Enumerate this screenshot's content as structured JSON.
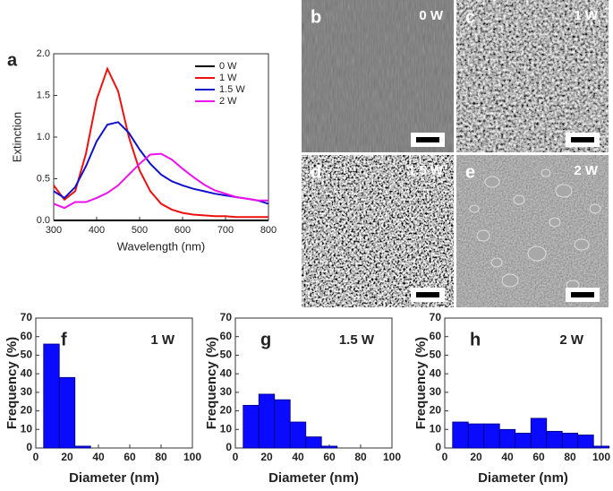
{
  "chart_data": [
    {
      "type": "line",
      "panel": "a",
      "xlabel": "Wavelength (nm)",
      "ylabel": "Extinction",
      "x": [
        300,
        325,
        350,
        375,
        400,
        425,
        450,
        475,
        500,
        525,
        550,
        575,
        600,
        625,
        650,
        675,
        700,
        725,
        750,
        775,
        800
      ],
      "series": [
        {
          "name": "0 W",
          "color": "#000000",
          "values": [
            0,
            0,
            0,
            0,
            0,
            0,
            0,
            0,
            0,
            0,
            0,
            0,
            0,
            0,
            0,
            0,
            0,
            0,
            0,
            0,
            0
          ]
        },
        {
          "name": "1 W",
          "color": "#ee1111",
          "values": [
            0.42,
            0.25,
            0.35,
            0.8,
            1.45,
            1.82,
            1.55,
            1.0,
            0.6,
            0.35,
            0.2,
            0.13,
            0.09,
            0.07,
            0.06,
            0.05,
            0.05,
            0.04,
            0.04,
            0.04,
            0.04
          ]
        },
        {
          "name": "1.5 W",
          "color": "#1111cc",
          "values": [
            0.35,
            0.27,
            0.4,
            0.65,
            0.95,
            1.15,
            1.18,
            1.05,
            0.85,
            0.68,
            0.55,
            0.47,
            0.42,
            0.38,
            0.35,
            0.32,
            0.3,
            0.28,
            0.26,
            0.24,
            0.2
          ]
        },
        {
          "name": "2 W",
          "color": "#ee11ee",
          "values": [
            0.2,
            0.15,
            0.22,
            0.22,
            0.27,
            0.33,
            0.42,
            0.55,
            0.68,
            0.79,
            0.8,
            0.73,
            0.62,
            0.52,
            0.43,
            0.36,
            0.32,
            0.28,
            0.26,
            0.24,
            0.24
          ]
        }
      ],
      "xlim": [
        300,
        800
      ],
      "xticks": [
        300,
        400,
        500,
        600,
        700,
        800
      ],
      "ylim": [
        0,
        2
      ],
      "yticks": [
        {
          "value": 0,
          "label": "0.0"
        },
        {
          "value": 0.5,
          "label": "0.5"
        },
        {
          "value": 1,
          "label": "1.0"
        },
        {
          "value": 1.5,
          "label": "1.5"
        },
        {
          "value": 2,
          "label": "2.0"
        }
      ],
      "legend": "upper right"
    },
    {
      "type": "histogram",
      "panel": "f",
      "annotation": "1 W",
      "xlabel": "Diameter (nm)",
      "ylabel": "Frequency (%)",
      "color": "#0a0aff",
      "bins": [
        5,
        15,
        25,
        35,
        45,
        55,
        65,
        75,
        85,
        95,
        105
      ],
      "values": [
        56,
        38,
        1,
        0,
        0,
        0,
        0,
        0,
        0,
        0
      ],
      "xlim": [
        0,
        100
      ],
      "xticks": [
        0,
        20,
        40,
        60,
        80,
        100
      ],
      "ylim": [
        0,
        70
      ],
      "yticks": [
        0,
        10,
        20,
        30,
        40,
        50,
        60,
        70
      ]
    },
    {
      "type": "histogram",
      "panel": "g",
      "annotation": "1.5 W",
      "xlabel": "Diameter (nm)",
      "ylabel": "Frequency (%)",
      "color": "#0a0aff",
      "bins": [
        5,
        15,
        25,
        35,
        45,
        55,
        65,
        75,
        85,
        95,
        105
      ],
      "values": [
        23,
        29,
        26,
        14,
        6,
        1,
        0,
        0,
        0,
        0
      ],
      "xlim": [
        0,
        100
      ],
      "xticks": [
        0,
        20,
        40,
        60,
        80,
        100
      ],
      "ylim": [
        0,
        70
      ],
      "yticks": [
        0,
        10,
        20,
        30,
        40,
        50,
        60,
        70
      ]
    },
    {
      "type": "histogram",
      "panel": "h",
      "annotation": "2 W",
      "xlabel": "Diameter (nm)",
      "ylabel": "Frequency (%)",
      "color": "#0a0aff",
      "bins": [
        5,
        15,
        25,
        35,
        45,
        55,
        65,
        75,
        85,
        95,
        105
      ],
      "values": [
        14,
        13,
        13,
        10,
        8,
        16,
        9,
        8,
        7,
        1
      ],
      "xlim": [
        0,
        100
      ],
      "xticks": [
        0,
        20,
        40,
        60,
        80,
        100
      ],
      "ylim": [
        0,
        70
      ],
      "yticks": [
        0,
        10,
        20,
        30,
        40,
        50,
        60,
        70
      ]
    }
  ],
  "sem_panels": [
    {
      "letter": "b",
      "label": "0 W"
    },
    {
      "letter": "c",
      "label": "1 W"
    },
    {
      "letter": "d",
      "label": "1.5 W"
    },
    {
      "letter": "e",
      "label": "2 W"
    }
  ]
}
